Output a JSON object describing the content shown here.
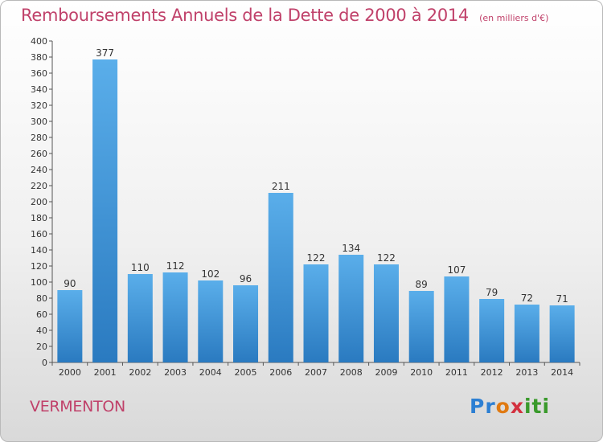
{
  "title": "Remboursements Annuels de la Dette de 2000 à 2014",
  "unit_note": "(en milliers d'€)",
  "commune": "VERMENTON",
  "brand": {
    "parts": [
      "Pr",
      "o",
      "x",
      "iti"
    ]
  },
  "colors": {
    "title": "#c0416a",
    "bar_top": "#5aaeea",
    "bar_bottom": "#2a7ac0"
  },
  "chart_data": {
    "type": "bar",
    "title": "Remboursements Annuels de la Dette de 2000 à 2014",
    "xlabel": "",
    "ylabel": "",
    "categories": [
      "2000",
      "2001",
      "2002",
      "2003",
      "2004",
      "2005",
      "2006",
      "2007",
      "2008",
      "2009",
      "2010",
      "2011",
      "2012",
      "2013",
      "2014"
    ],
    "values": [
      90,
      377,
      110,
      112,
      102,
      96,
      211,
      122,
      134,
      122,
      89,
      107,
      79,
      72,
      71
    ],
    "ylim": [
      0,
      400
    ],
    "ytick_step": 20,
    "grid": false,
    "data_labels": true
  }
}
